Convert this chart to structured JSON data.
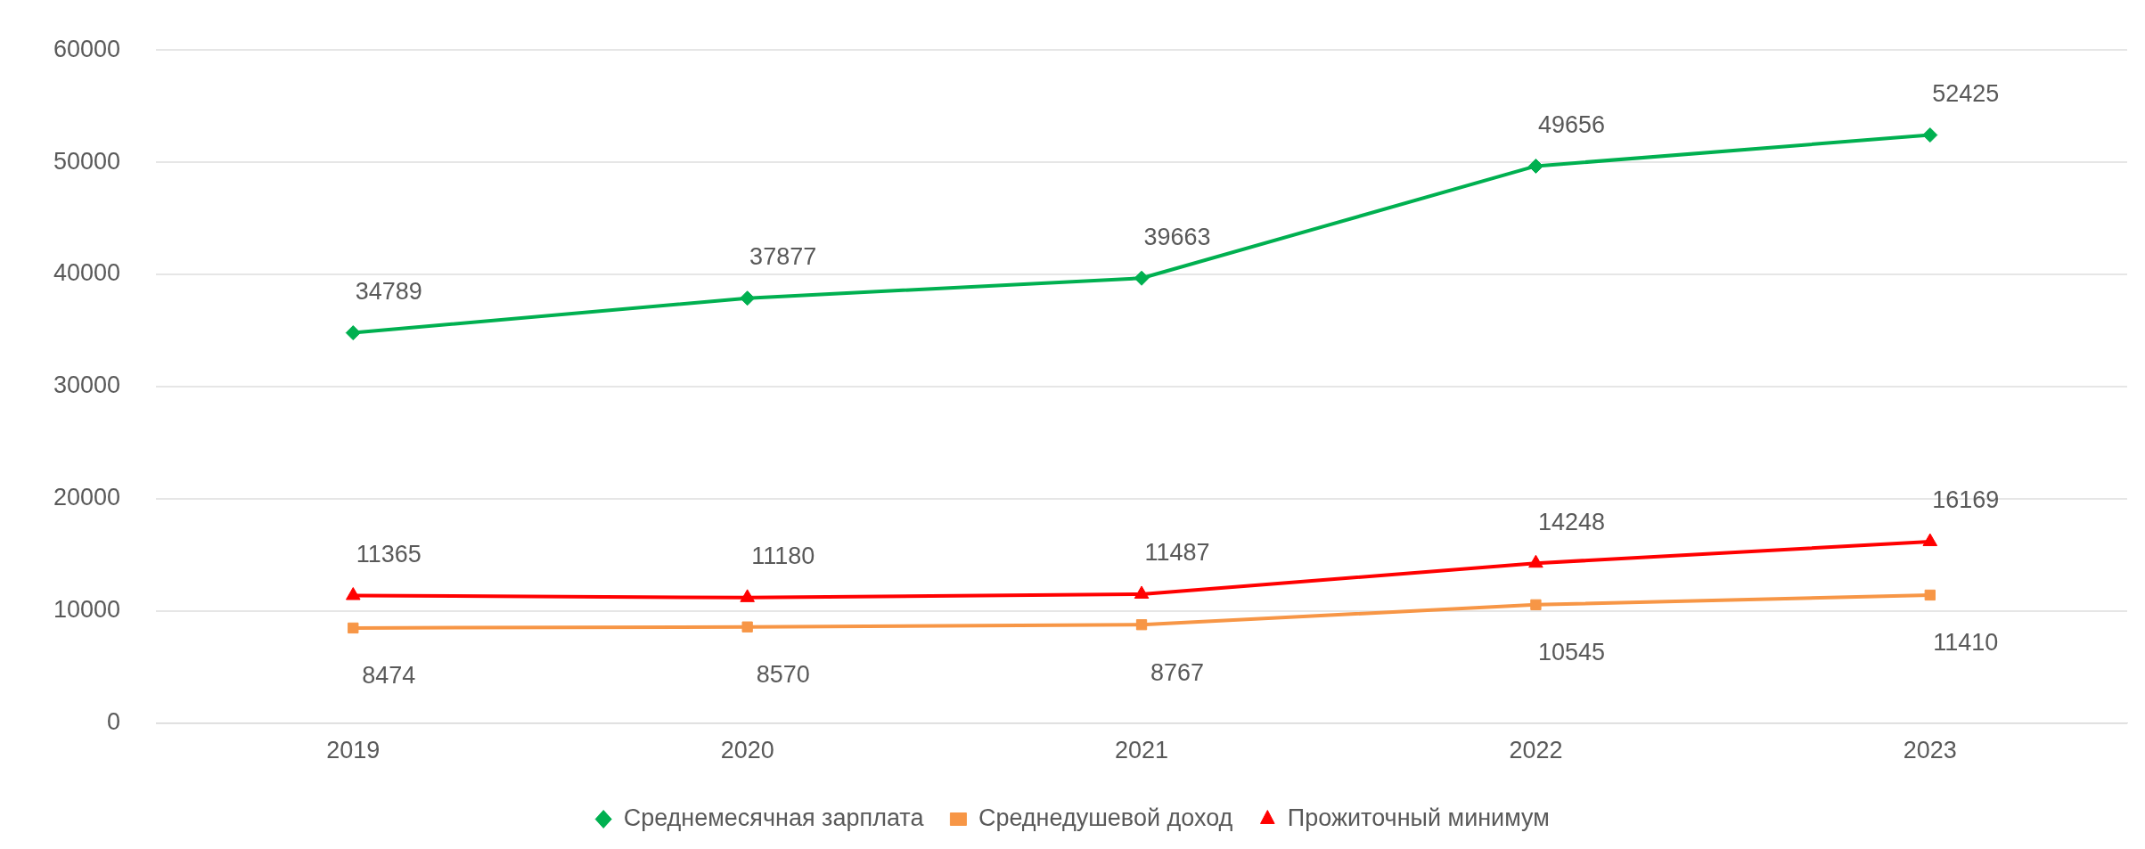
{
  "chart_data": {
    "type": "line",
    "categories": [
      "2019",
      "2020",
      "2021",
      "2022",
      "2023"
    ],
    "series": [
      {
        "name": "Среднемесячная зарплата",
        "color": "#00b050",
        "marker": "diamond",
        "values": [
          34789,
          37877,
          39663,
          49656,
          52425
        ]
      },
      {
        "name": "Среднедушевой доход",
        "color": "#f79646",
        "marker": "square",
        "values": [
          8474,
          8570,
          8767,
          10545,
          11410
        ]
      },
      {
        "name": "Прожиточный минимум",
        "color": "#ff0000",
        "marker": "triangle",
        "values": [
          11365,
          11180,
          11487,
          14248,
          16169
        ]
      }
    ],
    "ylim": [
      0,
      60000
    ],
    "yticks": [
      0,
      10000,
      20000,
      30000,
      40000,
      50000,
      60000
    ],
    "grid": "y",
    "legend": "bottom",
    "data_labels": true,
    "line_style": "solid"
  }
}
